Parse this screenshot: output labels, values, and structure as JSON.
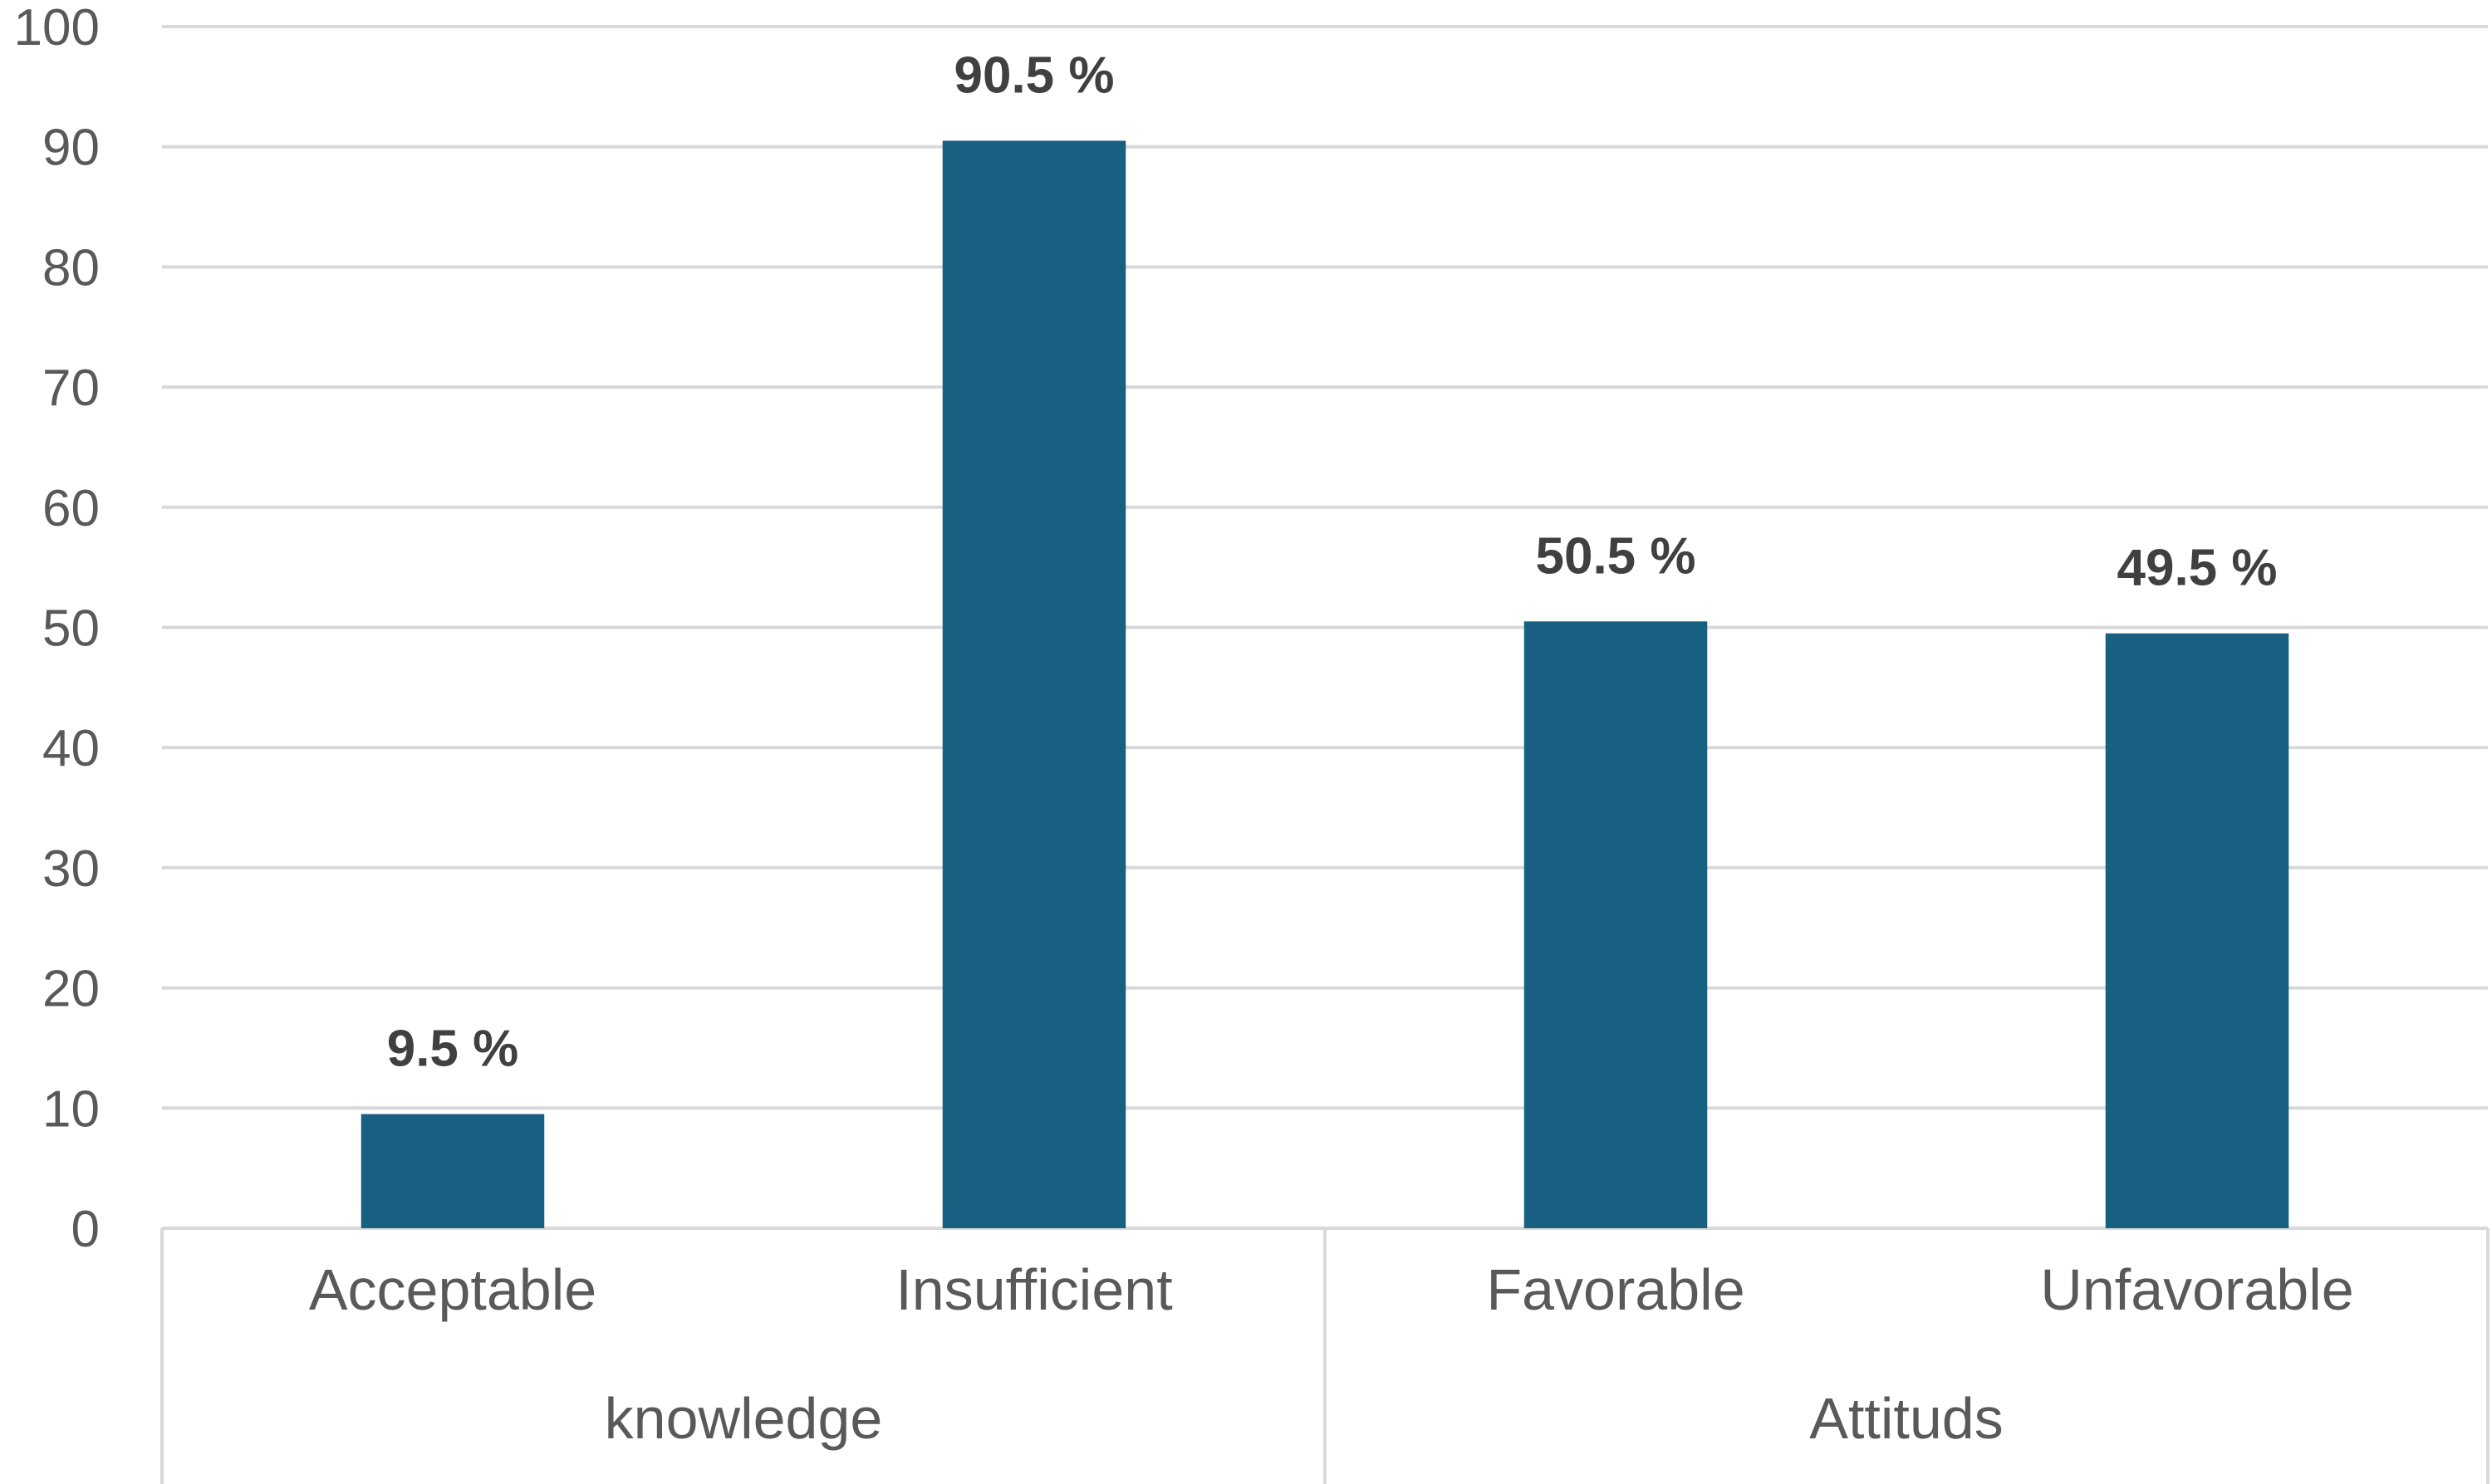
{
  "chart_data": {
    "type": "bar",
    "title": "",
    "xlabel": "",
    "ylabel": "",
    "ylim": [
      0,
      100
    ],
    "yticks": [
      0,
      10,
      20,
      30,
      40,
      50,
      60,
      70,
      80,
      90,
      100
    ],
    "grid": true,
    "bar_color": "#185f82",
    "categories": [
      "Acceptable",
      "Insufficient",
      "Favorable",
      "Unfavorable"
    ],
    "values": [
      9.5,
      90.5,
      50.5,
      49.5
    ],
    "data_labels": [
      "9.5  %",
      "90.5 %",
      "50.5  %",
      "49.5 %"
    ],
    "groups": [
      {
        "name": "knowledge",
        "categories": [
          "Acceptable",
          "Insufficient"
        ]
      },
      {
        "name": "Attituds",
        "categories": [
          "Favorable",
          "Unfavorable"
        ]
      }
    ]
  }
}
